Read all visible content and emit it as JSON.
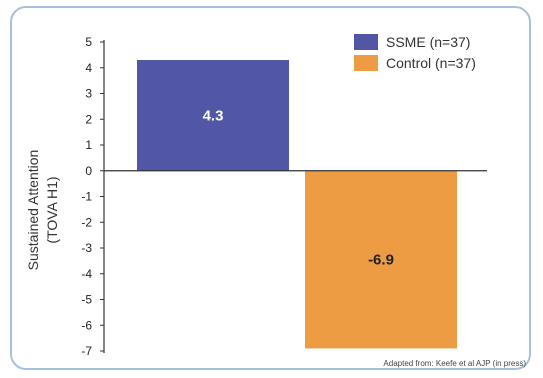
{
  "chart_data": {
    "type": "bar",
    "categories": [
      "SSME (n=37)",
      "Control (n=37)"
    ],
    "values": [
      4.3,
      -6.9
    ],
    "data_labels": [
      "4.3",
      "-6.9"
    ],
    "colors": [
      "#5157a5",
      "#ee9c44"
    ],
    "label_colors": [
      "#ffffff",
      "#222222"
    ],
    "title": "",
    "xlabel": "",
    "ylabel": [
      "Sustained Attention",
      "(TOVA H1)"
    ],
    "ylim": [
      -7,
      5
    ],
    "yticks": [
      5,
      4,
      3,
      2,
      1,
      0,
      -1,
      -2,
      -3,
      -4,
      -5,
      -6,
      -7
    ],
    "ytick_labels": [
      "5",
      "4",
      "3",
      "2",
      "1",
      "0",
      "-1",
      "-2",
      "-3",
      "-4",
      "-5",
      "-6",
      "-7"
    ],
    "grid": false,
    "legend": {
      "position": "top-right",
      "entries": [
        "SSME (n=37)",
        "Control (n=37)"
      ]
    },
    "source_note": "Adapted from: Keefe et al AJP (in press)"
  }
}
